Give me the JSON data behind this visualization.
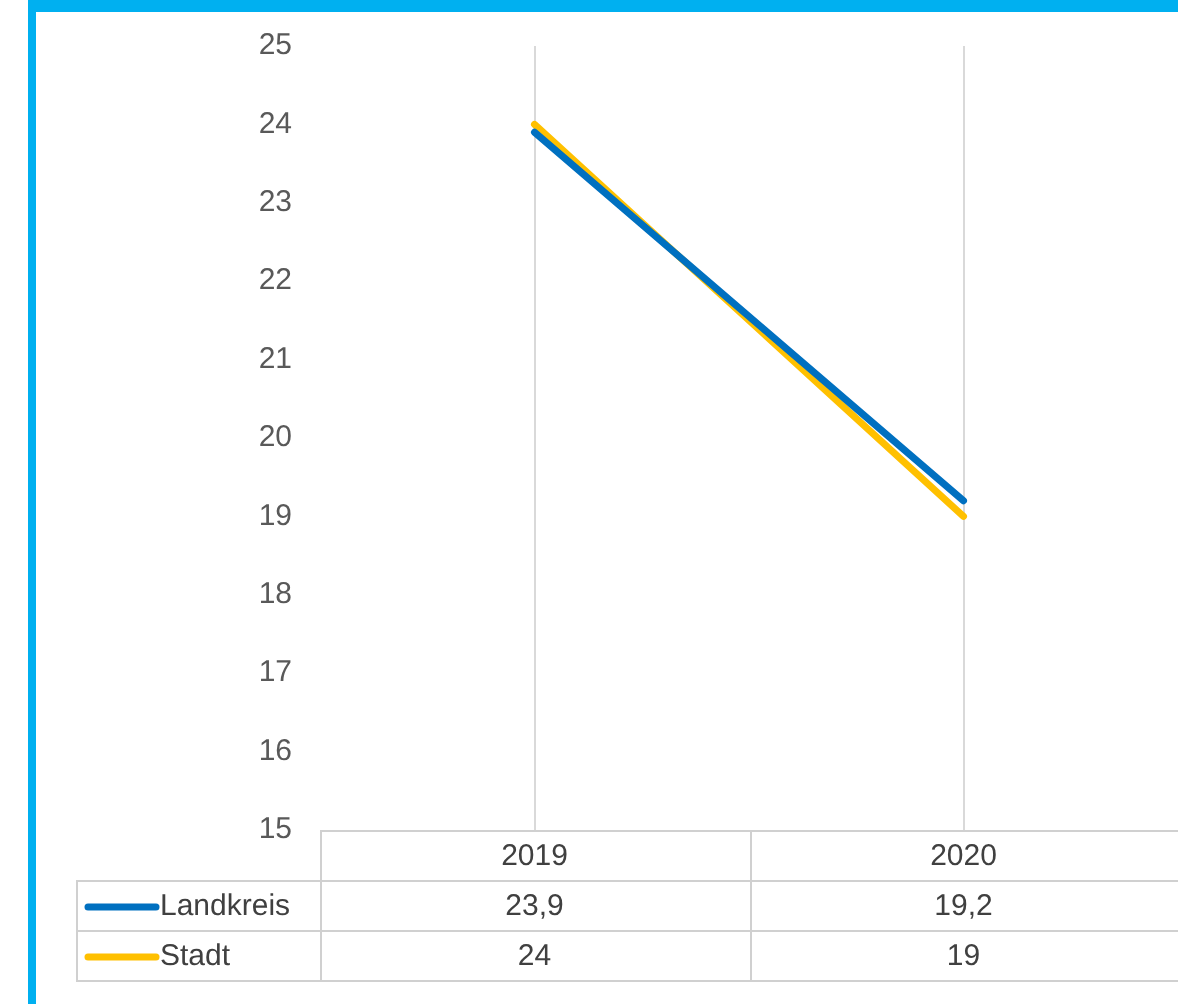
{
  "chart_data": {
    "type": "line",
    "categories": [
      "2019",
      "2020"
    ],
    "series": [
      {
        "name": "Landkreis",
        "color": "#0070c0",
        "values": [
          23.9,
          19.2
        ],
        "value_labels": [
          "23,9",
          "19,2"
        ]
      },
      {
        "name": "Stadt",
        "color": "#ffc000",
        "values": [
          24,
          19
        ],
        "value_labels": [
          "24",
          "19"
        ]
      }
    ],
    "ylim": [
      15,
      25
    ],
    "yticks": [
      15,
      16,
      17,
      18,
      19,
      20,
      21,
      22,
      23,
      24,
      25
    ],
    "grid": "x",
    "legend": "bottom",
    "marker": "none",
    "line_style": "solid"
  }
}
